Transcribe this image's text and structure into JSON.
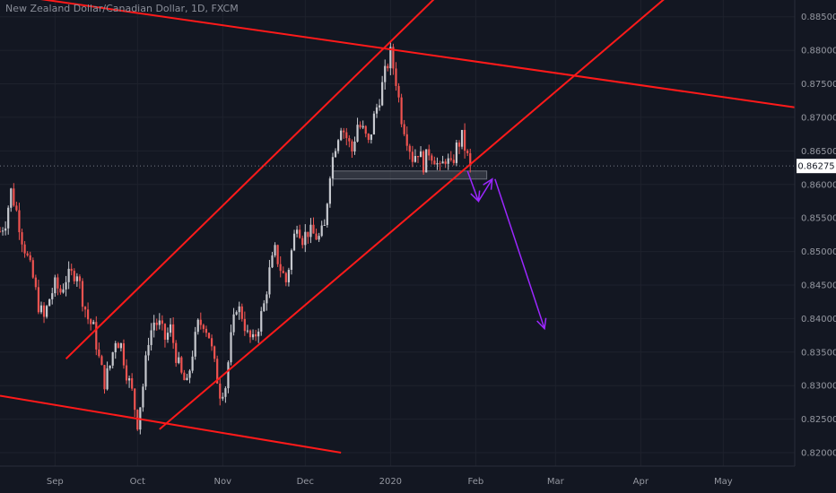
{
  "chart_data": {
    "type": "candlestick",
    "title": "New Zealand Dollar/Canadian Dollar, 1D, FXCM",
    "current_price": 0.86275,
    "current_price_label": "0.86275",
    "ylim": [
      0.818,
      0.8875
    ],
    "xlim_days": [
      -20,
      269
    ],
    "y_ticks": [
      {
        "value": 0.885,
        "label": "0.88500"
      },
      {
        "value": 0.88,
        "label": "0.88000"
      },
      {
        "value": 0.875,
        "label": "0.87500"
      },
      {
        "value": 0.87,
        "label": "0.87000"
      },
      {
        "value": 0.865,
        "label": "0.86500"
      },
      {
        "value": 0.86,
        "label": "0.86000"
      },
      {
        "value": 0.855,
        "label": "0.85500"
      },
      {
        "value": 0.85,
        "label": "0.85000"
      },
      {
        "value": 0.845,
        "label": "0.84500"
      },
      {
        "value": 0.84,
        "label": "0.84000"
      },
      {
        "value": 0.835,
        "label": "0.83500"
      },
      {
        "value": 0.83,
        "label": "0.83000"
      },
      {
        "value": 0.825,
        "label": "0.82500"
      },
      {
        "value": 0.82,
        "label": "0.82000"
      }
    ],
    "x_ticks": [
      {
        "day": 0,
        "label": "Sep"
      },
      {
        "day": 30,
        "label": "Oct"
      },
      {
        "day": 61,
        "label": "Nov"
      },
      {
        "day": 91,
        "label": "Dec"
      },
      {
        "day": 122,
        "label": "2020"
      },
      {
        "day": 153,
        "label": "Feb"
      },
      {
        "day": 182,
        "label": "Mar"
      },
      {
        "day": 213,
        "label": "Apr"
      },
      {
        "day": 243,
        "label": "May"
      }
    ],
    "price_path": [
      [
        -20,
        0.853
      ],
      [
        -18,
        0.8545
      ],
      [
        -16,
        0.859
      ],
      [
        -14,
        0.856
      ],
      [
        -12,
        0.852
      ],
      [
        -10,
        0.849
      ],
      [
        -8,
        0.846
      ],
      [
        -6,
        0.842
      ],
      [
        -4,
        0.84
      ],
      [
        -2,
        0.843
      ],
      [
        0,
        0.845
      ],
      [
        2,
        0.844
      ],
      [
        4,
        0.846
      ],
      [
        6,
        0.8465
      ],
      [
        8,
        0.847
      ],
      [
        10,
        0.843
      ],
      [
        12,
        0.84
      ],
      [
        14,
        0.8385
      ],
      [
        16,
        0.834
      ],
      [
        18,
        0.8305
      ],
      [
        20,
        0.833
      ],
      [
        22,
        0.837
      ],
      [
        24,
        0.836
      ],
      [
        26,
        0.832
      ],
      [
        28,
        0.829
      ],
      [
        30,
        0.8245
      ],
      [
        32,
        0.83
      ],
      [
        34,
        0.837
      ],
      [
        36,
        0.8395
      ],
      [
        38,
        0.839
      ],
      [
        40,
        0.837
      ],
      [
        42,
        0.8385
      ],
      [
        44,
        0.8345
      ],
      [
        46,
        0.8315
      ],
      [
        48,
        0.83
      ],
      [
        50,
        0.835
      ],
      [
        52,
        0.839
      ],
      [
        54,
        0.8395
      ],
      [
        56,
        0.8375
      ],
      [
        58,
        0.833
      ],
      [
        60,
        0.829
      ],
      [
        62,
        0.83
      ],
      [
        64,
        0.837
      ],
      [
        66,
        0.842
      ],
      [
        68,
        0.8405
      ],
      [
        70,
        0.8375
      ],
      [
        72,
        0.8365
      ],
      [
        74,
        0.839
      ],
      [
        76,
        0.842
      ],
      [
        78,
        0.847
      ],
      [
        80,
        0.85
      ],
      [
        82,
        0.8475
      ],
      [
        84,
        0.8455
      ],
      [
        86,
        0.85
      ],
      [
        88,
        0.8545
      ],
      [
        90,
        0.852
      ],
      [
        92,
        0.853
      ],
      [
        94,
        0.8525
      ],
      [
        96,
        0.852
      ],
      [
        98,
        0.8535
      ],
      [
        100,
        0.862
      ],
      [
        102,
        0.866
      ],
      [
        104,
        0.869
      ],
      [
        106,
        0.867
      ],
      [
        108,
        0.865
      ],
      [
        110,
        0.869
      ],
      [
        112,
        0.868
      ],
      [
        114,
        0.866
      ],
      [
        116,
        0.87
      ],
      [
        118,
        0.873
      ],
      [
        120,
        0.8765
      ],
      [
        122,
        0.8795
      ],
      [
        124,
        0.8755
      ],
      [
        126,
        0.87
      ],
      [
        128,
        0.867
      ],
      [
        130,
        0.864
      ],
      [
        132,
        0.865
      ],
      [
        134,
        0.863
      ],
      [
        136,
        0.865
      ],
      [
        138,
        0.864
      ],
      [
        140,
        0.862
      ],
      [
        142,
        0.864
      ],
      [
        144,
        0.8625
      ],
      [
        146,
        0.8655
      ],
      [
        148,
        0.867
      ],
      [
        150,
        0.864
      ],
      [
        151,
        0.86275
      ]
    ],
    "support_zone": {
      "x0_day": 101,
      "x1_day": 157,
      "y_low": 0.8608,
      "y_high": 0.862
    },
    "trend_lines": [
      {
        "name": "descending-channel-top",
        "from": [
          -20,
          0.8885
        ],
        "to": [
          269,
          0.8715
        ]
      },
      {
        "name": "descending-channel-bottom",
        "from": [
          -20,
          0.8285
        ],
        "to": [
          104,
          0.82
        ]
      },
      {
        "name": "ascending-channel-top",
        "from": [
          4,
          0.834
        ],
        "to": [
          140,
          0.8885
        ]
      },
      {
        "name": "ascending-channel-bottom",
        "from": [
          38,
          0.8235
        ],
        "to": [
          224,
          0.8885
        ]
      }
    ],
    "forecast_arrows": [
      {
        "name": "projection-arrow-1",
        "points": [
          [
            150,
            0.862
          ],
          [
            154,
            0.8575
          ]
        ]
      },
      {
        "name": "projection-arrow-2",
        "points": [
          [
            154,
            0.8575
          ],
          [
            159,
            0.8608
          ]
        ]
      },
      {
        "name": "projection-arrow-3",
        "points": [
          [
            160,
            0.8608
          ],
          [
            178,
            0.8385
          ]
        ]
      }
    ],
    "colors": {
      "background": "#131722",
      "up_candle": "#c7c9cf",
      "down_candle": "#ef5350",
      "trend_line": "#ff1a1a",
      "arrow": "#9c27ff",
      "grid": "#1e222d",
      "axis_text": "#9598a1",
      "price_badge": "#ffffff",
      "support_zone": "#4a4e5a"
    }
  }
}
